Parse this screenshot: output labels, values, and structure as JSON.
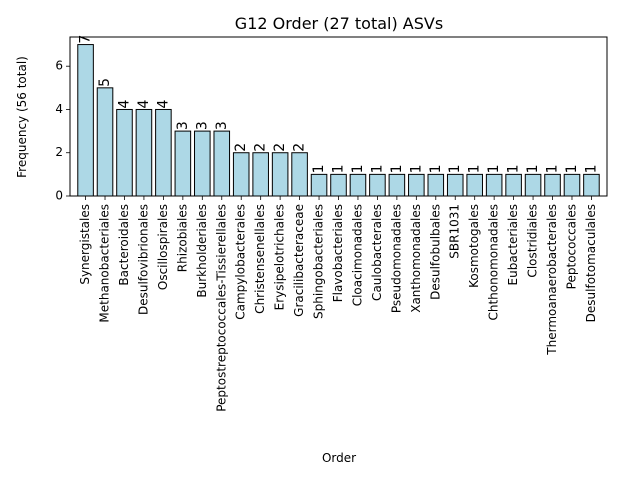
{
  "chart_data": {
    "type": "bar",
    "title": "G12 Order (27 total) ASVs",
    "xlabel": "Order",
    "ylabel": "Frequency (56 total)",
    "ylim": [
      0,
      7.35
    ],
    "yticks": [
      0,
      2,
      4,
      6
    ],
    "grid": false,
    "bar_color": "#add8e6",
    "edge_color": "#000000",
    "categories": [
      "Synergistales",
      "Methanobacteriales",
      "Bacteroidales",
      "Desulfovibrionales",
      "Oscillospirales",
      "Rhizobiales",
      "Burkholderiales",
      "Peptostreptococcales-Tissierellales",
      "Campylobacterales",
      "Christensenellales",
      "Erysipelotrichales",
      "Gracilibacteraceae",
      "Sphingobacteriales",
      "Flavobacteriales",
      "Cloacimonadales",
      "Caulobacterales",
      "Pseudomonadales",
      "Xanthomonadales",
      "Desulfobulbales",
      "SBR1031",
      "Kosmotogales",
      "Chthonomonadales",
      "Eubacteriales",
      "Clostridiales",
      "Thermoanaerobacterales",
      "Peptococcales",
      "Desulfotomaculales"
    ],
    "values": [
      7,
      5,
      4,
      4,
      4,
      3,
      3,
      3,
      2,
      2,
      2,
      2,
      1,
      1,
      1,
      1,
      1,
      1,
      1,
      1,
      1,
      1,
      1,
      1,
      1,
      1,
      1
    ]
  }
}
